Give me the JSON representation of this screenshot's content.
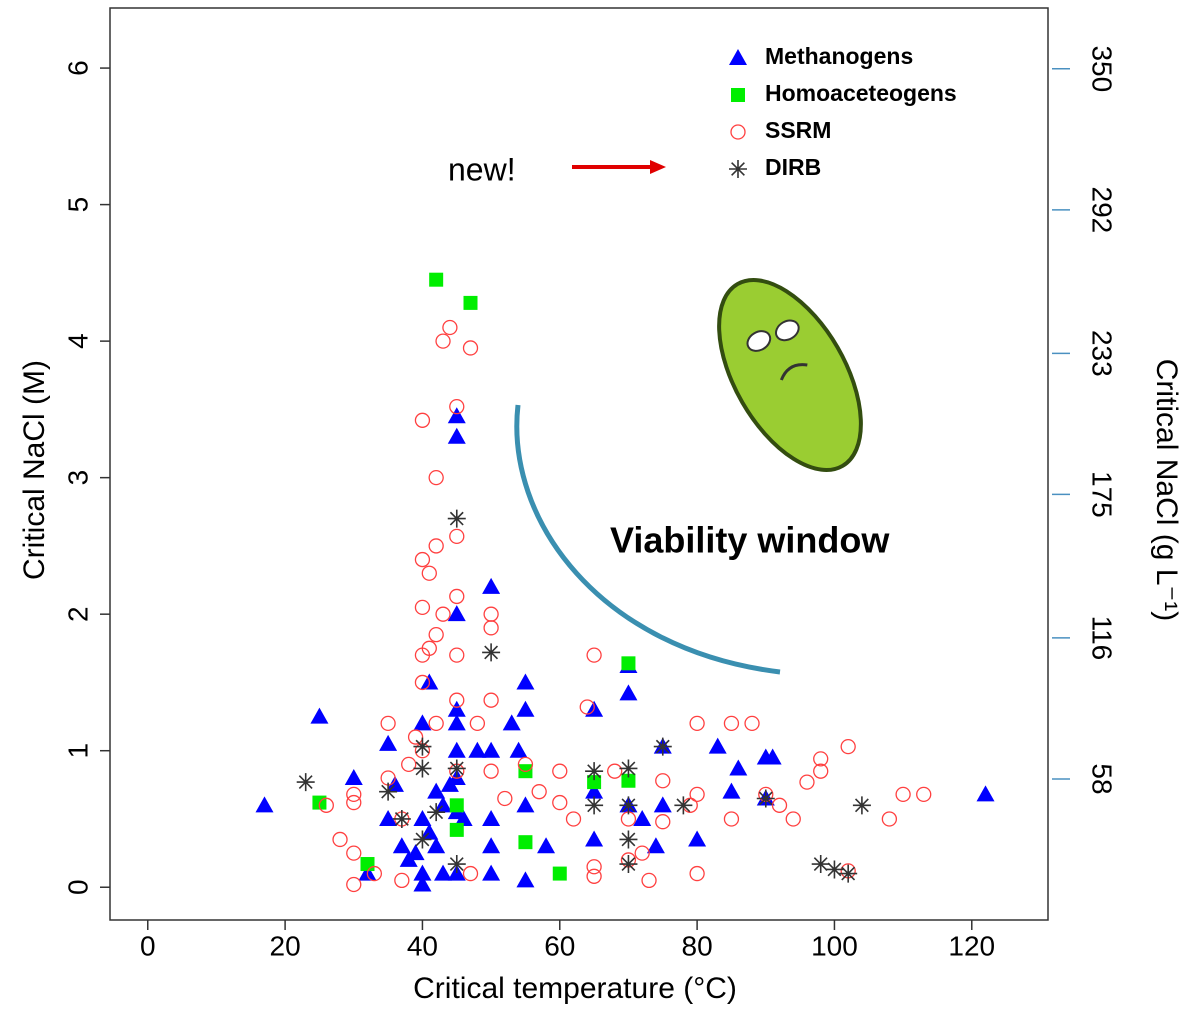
{
  "chart_data": {
    "type": "scatter",
    "xlabel": "Critical temperature (°C)",
    "ylabel": "Critical NaCl (M)",
    "y2label": "Critical NaCl (g L⁻¹)",
    "xlim": [
      -5.5,
      131.1
    ],
    "ylim": [
      -0.24,
      6.44
    ],
    "y2lim": [
      0,
      375
    ],
    "xticks": [
      0,
      20,
      40,
      60,
      80,
      100,
      120
    ],
    "yticks": [
      0,
      1,
      2,
      3,
      4,
      5,
      6
    ],
    "y2ticks": [
      58,
      116,
      175,
      233,
      292,
      350
    ],
    "annotations": [
      "new!",
      "Viability window"
    ],
    "series": [
      {
        "name": "Methanogens",
        "color": "#0000ff",
        "marker": "triangle",
        "x": [
          17,
          25,
          30,
          32,
          35,
          35,
          36,
          37,
          38,
          39,
          40,
          40,
          40,
          40,
          41,
          41,
          42,
          42,
          43,
          43,
          44,
          45,
          45,
          45,
          45,
          45,
          45,
          45,
          45,
          45,
          46,
          48,
          50,
          50,
          50,
          50,
          50,
          53,
          54,
          55,
          55,
          55,
          55,
          58,
          65,
          65,
          65,
          70,
          70,
          70,
          72,
          74,
          75,
          75,
          80,
          83,
          85,
          86,
          90,
          91,
          90,
          122
        ],
        "values": [
          0.6,
          1.25,
          0.8,
          0.1,
          1.05,
          0.5,
          0.75,
          0.3,
          0.2,
          0.25,
          1.2,
          0.5,
          0.1,
          0.02,
          1.5,
          0.4,
          0.7,
          0.3,
          0.6,
          0.1,
          0.75,
          3.45,
          3.3,
          2.0,
          1.3,
          1.2,
          1.0,
          0.8,
          0.55,
          0.1,
          0.5,
          1.0,
          2.2,
          1.0,
          0.5,
          0.3,
          0.1,
          1.2,
          1.0,
          1.5,
          1.3,
          0.6,
          0.05,
          0.3,
          1.3,
          0.7,
          0.35,
          1.62,
          1.42,
          0.6,
          0.5,
          0.3,
          1.03,
          0.6,
          0.35,
          1.03,
          0.7,
          0.87,
          0.95,
          0.95,
          0.65,
          0.68
        ]
      },
      {
        "name": "Homoaceteogens",
        "color": "#00ee00",
        "marker": "square",
        "x": [
          25,
          32,
          42,
          47,
          45,
          45,
          55,
          55,
          60,
          65,
          70,
          70
        ],
        "values": [
          0.62,
          0.17,
          4.45,
          4.28,
          0.6,
          0.42,
          0.85,
          0.33,
          0.1,
          0.77,
          1.64,
          0.78
        ]
      },
      {
        "name": "SSRM",
        "color": "#ff4040",
        "marker": "circle",
        "x": [
          26,
          28,
          30,
          30,
          30,
          30,
          33,
          35,
          35,
          37,
          37,
          38,
          39,
          40,
          40,
          40,
          40,
          40,
          40,
          41,
          41,
          42,
          42,
          42,
          42,
          43,
          43,
          44,
          45,
          45,
          45,
          45,
          45,
          45,
          47,
          47,
          48,
          50,
          50,
          50,
          50,
          52,
          55,
          57,
          60,
          60,
          62,
          64,
          65,
          65,
          65,
          68,
          70,
          70,
          72,
          73,
          75,
          75,
          79,
          80,
          80,
          80,
          85,
          85,
          88,
          90,
          92,
          94,
          96,
          98,
          98,
          102,
          102,
          108,
          110,
          113
        ],
        "values": [
          0.6,
          0.35,
          0.02,
          0.25,
          0.62,
          0.68,
          0.1,
          1.2,
          0.8,
          0.5,
          0.05,
          0.9,
          1.1,
          3.42,
          2.4,
          2.05,
          1.7,
          1.5,
          1.0,
          2.3,
          1.75,
          2.5,
          3.0,
          1.85,
          1.2,
          4.0,
          2.0,
          4.1,
          3.52,
          2.57,
          2.13,
          1.7,
          1.37,
          0.85,
          3.95,
          0.1,
          1.2,
          2.0,
          1.9,
          1.37,
          0.85,
          0.65,
          0.9,
          0.7,
          0.85,
          0.62,
          0.5,
          1.32,
          1.7,
          0.15,
          0.08,
          0.85,
          0.5,
          0.2,
          0.25,
          0.05,
          0.78,
          0.48,
          0.6,
          1.2,
          0.68,
          0.1,
          1.2,
          0.5,
          1.2,
          0.68,
          0.6,
          0.5,
          0.77,
          0.94,
          0.85,
          1.03,
          0.12,
          0.5,
          0.68,
          0.68
        ]
      },
      {
        "name": "DIRB",
        "color": "#333333",
        "marker": "asterisk",
        "x": [
          23,
          35,
          37,
          40,
          40,
          40,
          42,
          45,
          45,
          45,
          50,
          65,
          65,
          70,
          70,
          70,
          70,
          75,
          78,
          90,
          98,
          100,
          102,
          104
        ],
        "values": [
          0.77,
          0.7,
          0.5,
          1.03,
          0.87,
          0.35,
          0.55,
          2.7,
          0.87,
          0.17,
          1.72,
          0.85,
          0.6,
          0.87,
          0.6,
          0.35,
          0.17,
          1.03,
          0.6,
          0.65,
          0.17,
          0.13,
          0.1,
          0.6
        ]
      }
    ]
  }
}
